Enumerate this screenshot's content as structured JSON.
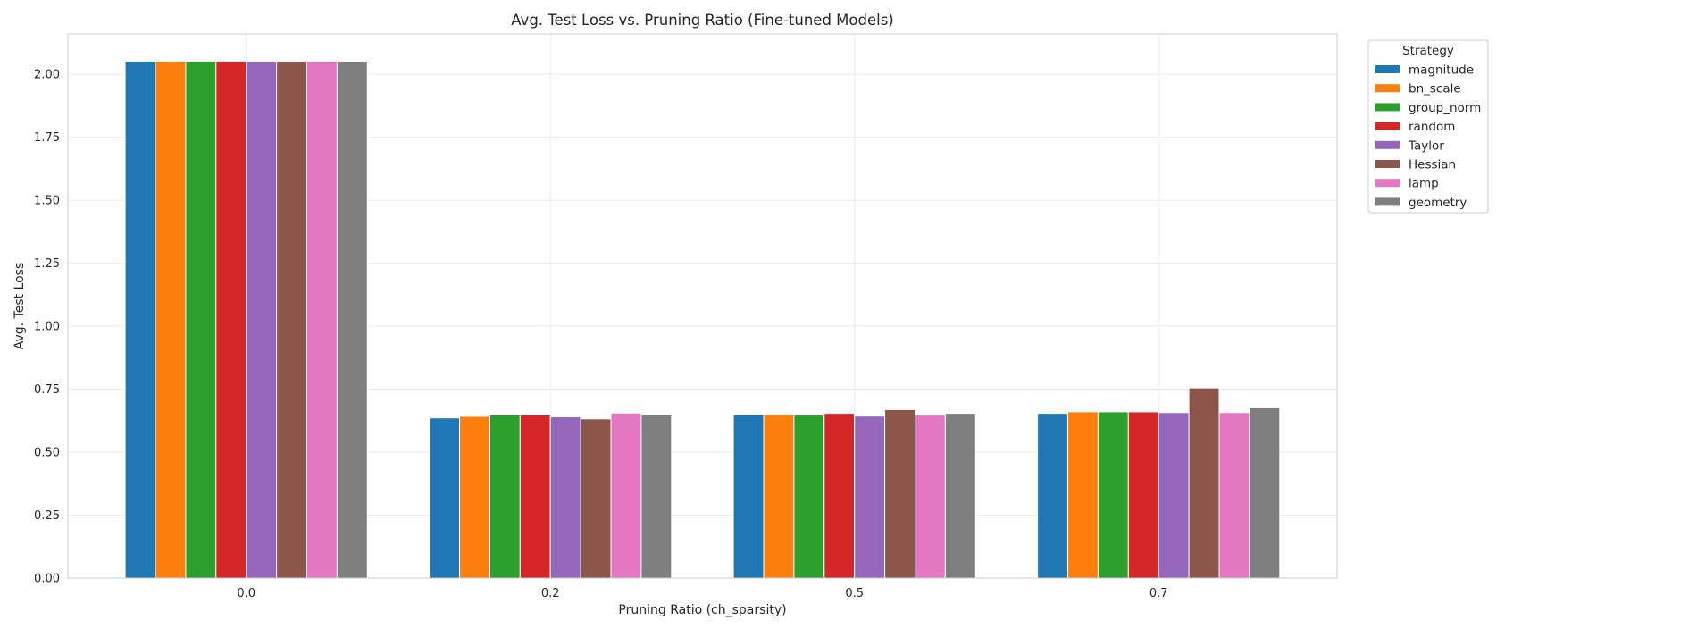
{
  "chart_data": {
    "type": "bar",
    "title": "Avg. Test Loss vs. Pruning Ratio (Fine-tuned Models)",
    "xlabel": "Pruning Ratio (ch_sparsity)",
    "ylabel": "Avg. Test Loss",
    "categories": [
      "0.0",
      "0.2",
      "0.5",
      "0.7"
    ],
    "ylim": [
      0,
      2.16
    ],
    "yticks": [
      "0.00",
      "0.25",
      "0.50",
      "0.75",
      "1.00",
      "1.25",
      "1.50",
      "1.75",
      "2.00"
    ],
    "grid": true,
    "legend": {
      "title": "Strategy",
      "placement": "outside-top-right"
    },
    "series": [
      {
        "name": "magnitude",
        "color": "#1f77b4",
        "values": [
          2.052,
          0.636,
          0.65,
          0.654
        ]
      },
      {
        "name": "bn_scale",
        "color": "#ff7f0e",
        "values": [
          2.052,
          0.642,
          0.65,
          0.66
        ]
      },
      {
        "name": "group_norm",
        "color": "#2ca02c",
        "values": [
          2.052,
          0.648,
          0.647,
          0.66
        ]
      },
      {
        "name": "random",
        "color": "#d62728",
        "values": [
          2.052,
          0.648,
          0.654,
          0.66
        ]
      },
      {
        "name": "Taylor",
        "color": "#9467bd",
        "values": [
          2.052,
          0.64,
          0.643,
          0.657
        ]
      },
      {
        "name": "Hessian",
        "color": "#8c564b",
        "values": [
          2.052,
          0.632,
          0.669,
          0.755
        ]
      },
      {
        "name": "lamp",
        "color": "#e377c2",
        "values": [
          2.052,
          0.655,
          0.647,
          0.657
        ]
      },
      {
        "name": "geometry",
        "color": "#7f7f7f",
        "values": [
          2.052,
          0.648,
          0.654,
          0.676
        ]
      }
    ]
  }
}
